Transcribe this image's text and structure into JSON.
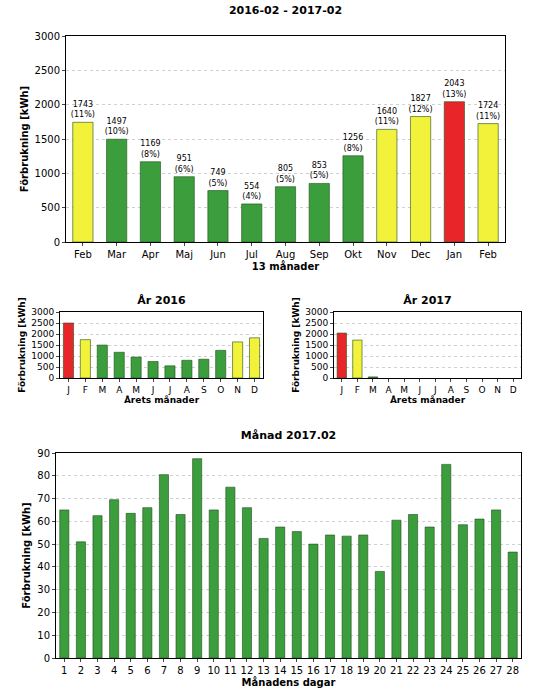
{
  "chart_data": [
    {
      "type": "bar",
      "title": "2016-02 - 2017-02",
      "x_label": "13 månader",
      "y_label": "Förbrukning [kWh]",
      "categories": [
        "Feb",
        "Mar",
        "Apr",
        "Maj",
        "Jun",
        "Jul",
        "Aug",
        "Sep",
        "Okt",
        "Nov",
        "Dec",
        "Jan",
        "Feb"
      ],
      "values": [
        1743,
        1497,
        1169,
        951,
        749,
        554,
        805,
        853,
        1256,
        1640,
        1827,
        2043,
        1724
      ],
      "value_labels": [
        [
          "1743",
          "(11%)"
        ],
        [
          "1497",
          "(10%)"
        ],
        [
          "1169",
          "(8%)"
        ],
        [
          "951",
          "(6%)"
        ],
        [
          "749",
          "(5%)"
        ],
        [
          "554",
          "(4%)"
        ],
        [
          "805",
          "(5%)"
        ],
        [
          "853",
          "(5%)"
        ],
        [
          "1256",
          "(8%)"
        ],
        [
          "1640",
          "(11%)"
        ],
        [
          "1827",
          "(12%)"
        ],
        [
          "2043",
          "(13%)"
        ],
        [
          "1724",
          "(11%)"
        ]
      ],
      "data_labels": true,
      "colors": [
        "#f2f23a",
        "#3c9d3c",
        "#3c9d3c",
        "#3c9d3c",
        "#3c9d3c",
        "#3c9d3c",
        "#3c9d3c",
        "#3c9d3c",
        "#3c9d3c",
        "#f2f23a",
        "#f2f23a",
        "#e8262a",
        "#f2f23a"
      ],
      "ylim": [
        0,
        3000
      ],
      "yticks": [
        0,
        500,
        1000,
        1500,
        2000,
        2500,
        3000
      ],
      "grid": true
    },
    {
      "type": "bar",
      "title": "År 2016",
      "x_label": "Årets månader",
      "y_label": "Förbrukning [kWh]",
      "categories": [
        "J",
        "F",
        "M",
        "A",
        "M",
        "J",
        "J",
        "A",
        "S",
        "O",
        "N",
        "D"
      ],
      "values": [
        2500,
        1743,
        1497,
        1169,
        951,
        749,
        554,
        805,
        853,
        1256,
        1640,
        1827
      ],
      "data_labels": false,
      "colors": [
        "#e8262a",
        "#f2f23a",
        "#3c9d3c",
        "#3c9d3c",
        "#3c9d3c",
        "#3c9d3c",
        "#3c9d3c",
        "#3c9d3c",
        "#3c9d3c",
        "#3c9d3c",
        "#f2f23a",
        "#f2f23a"
      ],
      "ylim": [
        0,
        3000
      ],
      "yticks": [
        0,
        500,
        1000,
        1500,
        2000,
        2500,
        3000
      ],
      "grid": true
    },
    {
      "type": "bar",
      "title": "År 2017",
      "x_label": "Årets månader",
      "y_label": "Förbrukning [kWh]",
      "categories": [
        "J",
        "F",
        "M",
        "A",
        "M",
        "J",
        "J",
        "A",
        "S",
        "O",
        "N",
        "D"
      ],
      "values": [
        2043,
        1724,
        50,
        null,
        null,
        null,
        null,
        null,
        null,
        null,
        null,
        null
      ],
      "data_labels": false,
      "colors": [
        "#e8262a",
        "#f2f23a",
        "#3c9d3c",
        "#3c9d3c",
        "#3c9d3c",
        "#3c9d3c",
        "#3c9d3c",
        "#3c9d3c",
        "#3c9d3c",
        "#3c9d3c",
        "#3c9d3c",
        "#3c9d3c"
      ],
      "ylim": [
        0,
        3000
      ],
      "yticks": [
        0,
        500,
        1000,
        1500,
        2000,
        2500,
        3000
      ],
      "grid": true
    },
    {
      "type": "bar",
      "title": "Månad 2017.02",
      "x_label": "Månadens dagar",
      "y_label": "Förbrukning [kWh]",
      "categories": [
        "1",
        "2",
        "3",
        "4",
        "5",
        "6",
        "7",
        "8",
        "9",
        "10",
        "11",
        "12",
        "13",
        "14",
        "15",
        "16",
        "17",
        "18",
        "19",
        "20",
        "21",
        "22",
        "23",
        "24",
        "25",
        "26",
        "27",
        "28"
      ],
      "values": [
        65,
        51,
        62.5,
        69.5,
        63.5,
        66,
        80.5,
        63,
        87.5,
        65,
        75,
        66,
        52.5,
        57.5,
        55.5,
        50,
        54,
        53.5,
        54,
        38,
        60.5,
        63,
        57.5,
        85,
        58.5,
        61,
        65,
        46.5
      ],
      "data_labels": false,
      "color": "#3c9d3c",
      "ylim": [
        0,
        90
      ],
      "yticks": [
        0,
        10,
        20,
        30,
        40,
        50,
        60,
        70,
        80,
        90
      ],
      "grid": true
    }
  ]
}
